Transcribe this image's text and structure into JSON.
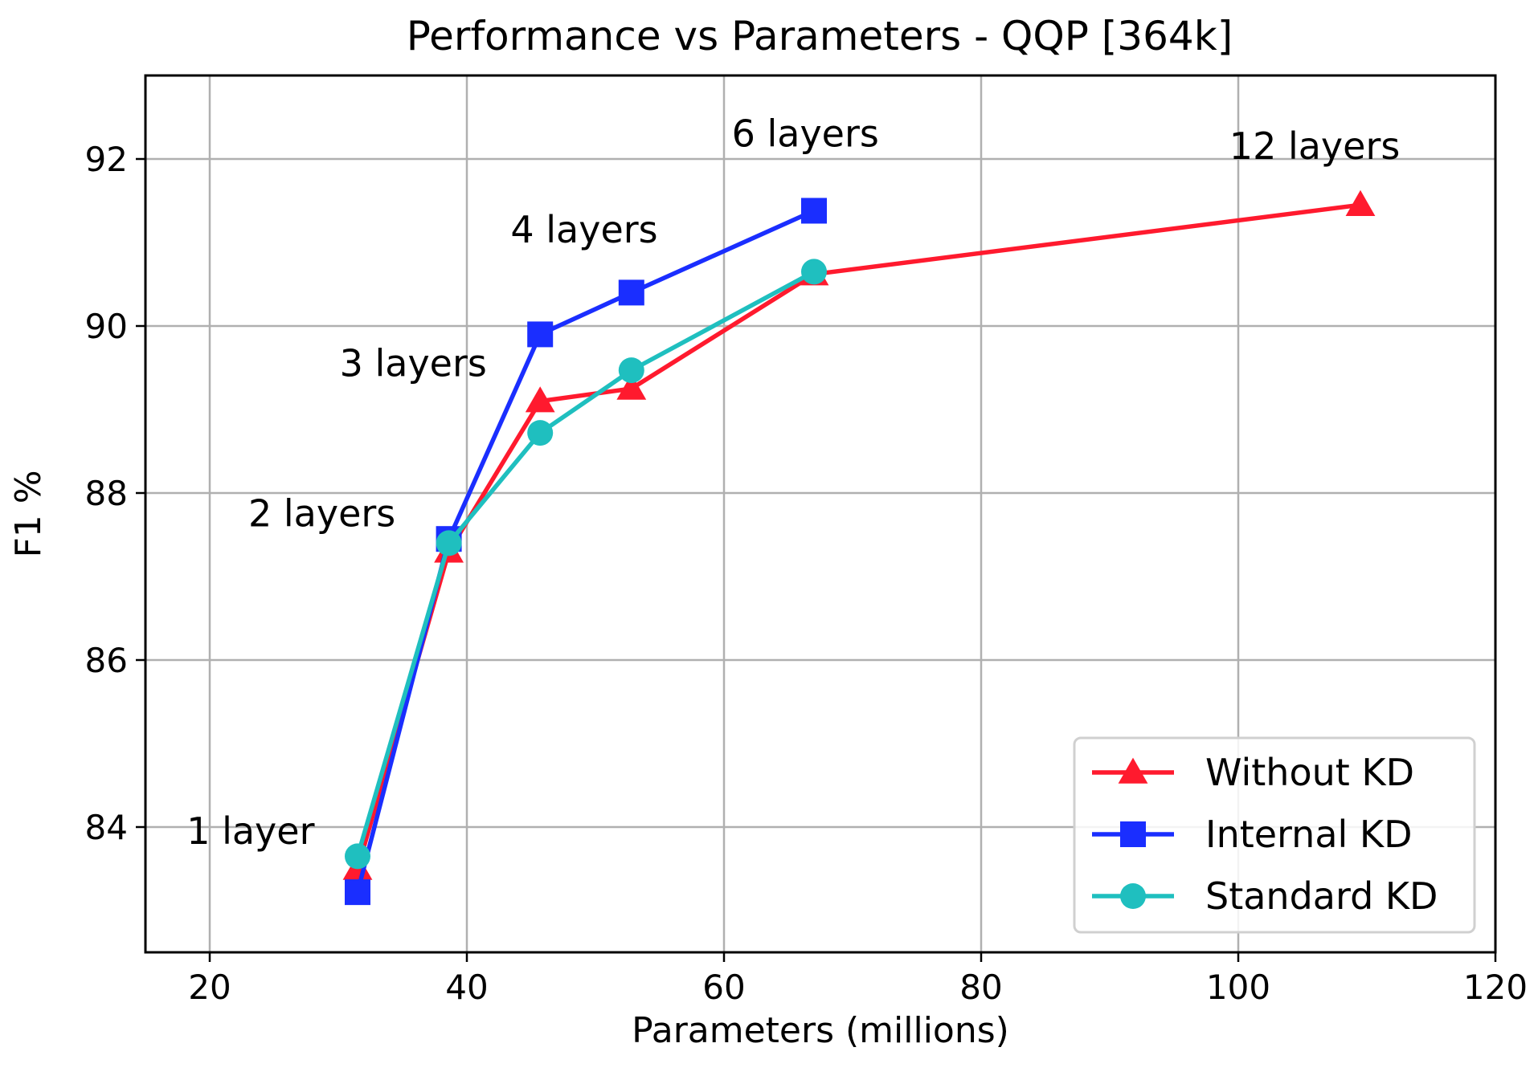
{
  "chart_data": {
    "type": "line",
    "title": "Performance vs Parameters - QQP [364k]",
    "xlabel": "Parameters (millions)",
    "ylabel": "F1 %",
    "xlim": [
      15,
      120
    ],
    "ylim": [
      82.5,
      93
    ],
    "xticks": [
      20,
      40,
      60,
      80,
      100,
      120
    ],
    "yticks": [
      84,
      86,
      88,
      90,
      92
    ],
    "grid": true,
    "legend_position": "bottom-right",
    "series": [
      {
        "name": "Without KD",
        "color": "#ff1a2e",
        "marker": "triangle",
        "x": [
          31.5,
          38.6,
          45.7,
          52.8,
          67.0,
          109.5
        ],
        "y": [
          83.5,
          87.3,
          89.1,
          89.25,
          90.62,
          91.45
        ]
      },
      {
        "name": "Internal KD",
        "color": "#1a2eff",
        "marker": "square",
        "x": [
          31.5,
          38.6,
          45.7,
          52.8,
          67.0
        ],
        "y": [
          83.22,
          87.45,
          89.9,
          90.4,
          91.38
        ]
      },
      {
        "name": "Standard KD",
        "color": "#1fbfbf",
        "marker": "circle",
        "x": [
          31.5,
          38.6,
          45.7,
          52.8,
          67.0
        ],
        "y": [
          83.65,
          87.4,
          88.72,
          89.47,
          90.65
        ]
      }
    ],
    "annotations": [
      {
        "text": "1 layer",
        "x": 18.2,
        "y": 83.8
      },
      {
        "text": "2 layers",
        "x": 23.0,
        "y": 87.6
      },
      {
        "text": "3 layers",
        "x": 30.1,
        "y": 89.4
      },
      {
        "text": "4 layers",
        "x": 43.4,
        "y": 91.0
      },
      {
        "text": "6 layers",
        "x": 60.6,
        "y": 92.15
      },
      {
        "text": "12 layers",
        "x": 99.3,
        "y": 92.0
      }
    ]
  }
}
